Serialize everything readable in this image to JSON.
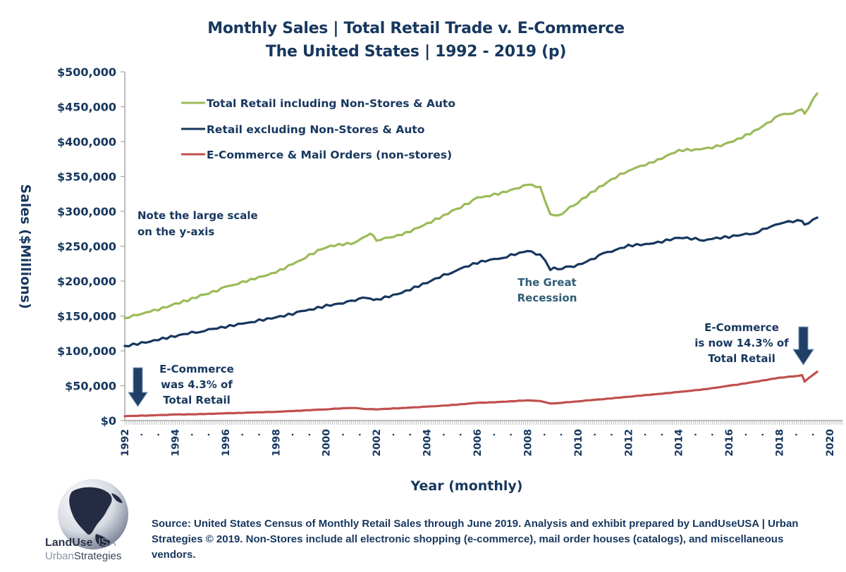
{
  "header": {
    "title_line1": "Monthly Sales | Total Retail Trade v. E-Commerce",
    "title_line2": "The United States | 1992 - 2019 (p)"
  },
  "colors": {
    "text": "#17375e",
    "total_retail": "#9bbb59",
    "retail_excl": "#17375e",
    "ecommerce": "#c0504d",
    "arrow": "#1f3f66",
    "axis": "#a6a6a6"
  },
  "chart_data": {
    "type": "line",
    "title": "Monthly Sales | Total Retail Trade v. E-Commerce — The United States | 1992 - 2019 (p)",
    "xlabel": "Year (monthly)",
    "ylabel": "Sales ($Millions)",
    "xlim": [
      1992,
      2020.5
    ],
    "ylim": [
      0,
      500000
    ],
    "x_tick_labels": [
      "1992",
      "1994",
      "1996",
      "1998",
      "2000",
      "2002",
      "2004",
      "2006",
      "2008",
      "2010",
      "2012",
      "2014",
      "2016",
      "2018",
      "2020"
    ],
    "y_tick_labels": [
      "$0",
      "$50,000",
      "$100,000",
      "$150,000",
      "$200,000",
      "$250,000",
      "$300,000",
      "$350,000",
      "$400,000",
      "$450,000",
      "$500,000"
    ],
    "y_ticks": [
      0,
      50000,
      100000,
      150000,
      200000,
      250000,
      300000,
      350000,
      400000,
      450000,
      500000
    ],
    "grid": false,
    "legend_position": "top-left",
    "x": [
      1992.0,
      1993.0,
      1994.0,
      1995.0,
      1996.0,
      1997.0,
      1998.0,
      1999.0,
      2000.0,
      2001.0,
      2001.75,
      2002.0,
      2003.0,
      2004.0,
      2005.0,
      2006.0,
      2007.0,
      2008.0,
      2008.5,
      2008.9,
      2009.2,
      2010.0,
      2011.0,
      2012.0,
      2013.0,
      2014.0,
      2015.0,
      2016.0,
      2017.0,
      2018.0,
      2018.9,
      2019.0,
      2019.5
    ],
    "series": [
      {
        "name": "Total Retail including Non-Stores & Auto",
        "color": "#9bbb59",
        "values": [
          147000,
          156000,
          168000,
          180000,
          192000,
          203000,
          212000,
          230000,
          248000,
          253000,
          268000,
          258000,
          266000,
          283000,
          301000,
          320000,
          328000,
          338000,
          335000,
          296000,
          294000,
          312000,
          337000,
          358000,
          370000,
          388000,
          390000,
          399000,
          416000,
          438000,
          446000,
          440000,
          469000
        ]
      },
      {
        "name": "Retail excluding Non-Stores & Auto",
        "color": "#17375e",
        "values": [
          107000,
          113000,
          120000,
          127000,
          133000,
          141000,
          148000,
          157000,
          166000,
          172000,
          175000,
          174000,
          183000,
          197000,
          212000,
          225000,
          233000,
          243000,
          238000,
          216000,
          217000,
          224000,
          240000,
          252000,
          254000,
          262000,
          258000,
          262000,
          268000,
          282000,
          286000,
          281000,
          291000
        ]
      },
      {
        "name": "E-Commerce & Mail Orders (non-stores)",
        "color": "#c0504d",
        "values": [
          6300,
          7500,
          8800,
          9500,
          10500,
          11500,
          12500,
          14000,
          16000,
          18000,
          16500,
          16000,
          18000,
          20000,
          22500,
          25500,
          27000,
          29000,
          28000,
          24500,
          25000,
          27500,
          30500,
          34000,
          37500,
          41000,
          45000,
          50000,
          55500,
          61500,
          65000,
          56000,
          70000
        ]
      }
    ],
    "annotations": [
      {
        "id": "scale_note",
        "lines": [
          "Note the large scale",
          "on the y-axis"
        ]
      },
      {
        "id": "recession",
        "lines": [
          "The Great",
          "Recession"
        ]
      },
      {
        "id": "start_share",
        "lines": [
          "E-Commerce",
          "was 4.3% of",
          "Total Retail"
        ]
      },
      {
        "id": "end_share",
        "lines": [
          "E-Commerce",
          "is now 14.3% of",
          "Total Retail"
        ]
      }
    ]
  },
  "legend": {
    "items": [
      {
        "label": "Total Retail including Non-Stores & Auto"
      },
      {
        "label": "Retail excluding Non-Stores & Auto"
      },
      {
        "label": "E-Commerce & Mail Orders (non-stores)"
      }
    ]
  },
  "footer": {
    "source_text": "Source: United States Census of Monthly Retail Sales through June 2019. Analysis and exhibit prepared by LandUseUSA | Urban Strategies © 2019. Non-Stores include all electronic shopping (e-commerce), mail order houses (catalogs), and miscellaneous vendors.",
    "logo_icon": "globe-icon",
    "logo_line1_bold": "LandUse",
    "logo_line1_light": "USA",
    "logo_line2_light": "Urban",
    "logo_line2_dark": "Strategies"
  }
}
